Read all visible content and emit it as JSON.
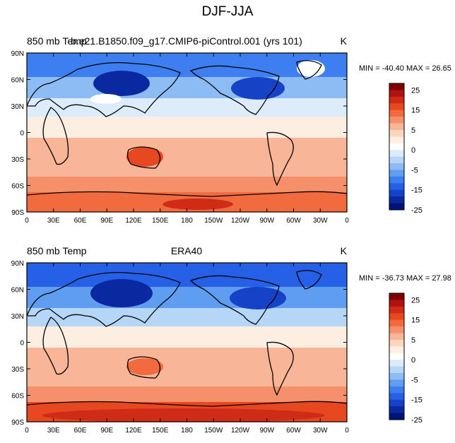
{
  "figure": {
    "title": "DJF-JJA"
  },
  "panels": [
    {
      "left_title": "850 mb Temp",
      "center_title": "b.e21.B1850.f09_g17.CMIP6-piControl.001 (yrs 101)",
      "units": "K",
      "stats": "MIN = -40.40 MAX =  26.65"
    },
    {
      "left_title": "850 mb Temp",
      "center_title": "ERA40",
      "units": "K",
      "stats": "MIN = -36.73 MAX =  27.98"
    }
  ],
  "axes": {
    "lat_ticks": [
      "90N",
      "60N",
      "30N",
      "0",
      "30S",
      "60S",
      "90S"
    ],
    "lon_ticks": [
      "0",
      "30E",
      "60E",
      "90E",
      "120E",
      "150E",
      "180",
      "150W",
      "120W",
      "90W",
      "60W",
      "30W",
      "0"
    ]
  },
  "colorbar": {
    "labels": [
      "25",
      "15",
      "5",
      "0",
      "-5",
      "-15",
      "-25"
    ],
    "colors": [
      "#7f0000",
      "#b21111",
      "#cf2b17",
      "#e8481f",
      "#f26b3f",
      "#f6906a",
      "#f9b597",
      "#fbd6c0",
      "#fdeee2",
      "#ffffff",
      "#dcecfb",
      "#b6d6f8",
      "#8cbcf3",
      "#5f9df0",
      "#3d7ff0",
      "#2560e6",
      "#1642c7",
      "#0a28a0",
      "#001478"
    ]
  },
  "chart_data": {
    "type": "heatmap",
    "title": "DJF-JJA",
    "variable": "850 mb Temp",
    "units": "K",
    "levels": [
      -30,
      -25,
      -20,
      -15,
      -10,
      -5,
      -2,
      0,
      2,
      5,
      10,
      15,
      20,
      25,
      30
    ],
    "panels": [
      {
        "name": "b.e21.B1850.f09_g17.CMIP6-piControl.001 (yrs 101)",
        "min": -40.4,
        "max": 26.65
      },
      {
        "name": "ERA40",
        "min": -36.73,
        "max": 27.98
      }
    ],
    "xlim": [
      0,
      360
    ],
    "ylim": [
      -90,
      90
    ]
  }
}
